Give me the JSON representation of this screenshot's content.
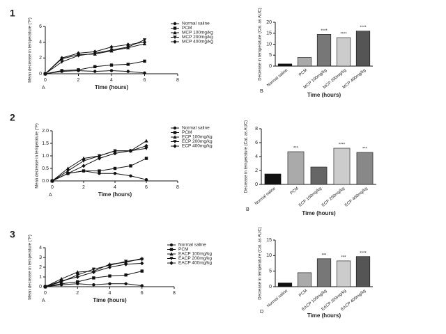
{
  "chart_data": [
    {
      "type": "line",
      "figure_label": "1",
      "panel_label": "A",
      "x_label": "Time (hours)",
      "y_label": "Mean decrease in temperature (°F)",
      "x": [
        0,
        1,
        2,
        3,
        4,
        5,
        6
      ],
      "xlim": [
        0,
        8
      ],
      "xticks": [
        0,
        2,
        4,
        6,
        8
      ],
      "ylim": [
        0,
        6
      ],
      "yticks": [
        0,
        2,
        4,
        6
      ],
      "legend": "upper right",
      "series": [
        {
          "name": "Normal saline",
          "color": "#111111",
          "values": [
            0,
            0.3,
            0.4,
            0.3,
            0.4,
            0.3,
            0.1
          ]
        },
        {
          "name": "PCM",
          "color": "#111111",
          "values": [
            0,
            0.4,
            0.5,
            0.9,
            1.1,
            1.2,
            1.6
          ]
        },
        {
          "name": "MCP 100mg/kg",
          "color": "#111111",
          "values": [
            0,
            1.9,
            2.4,
            2.5,
            2.9,
            3.3,
            3.8
          ]
        },
        {
          "name": "MCP 200mg/kg",
          "color": "#111111",
          "values": [
            0,
            1.5,
            2.3,
            2.6,
            3.0,
            3.4,
            4.3
          ]
        },
        {
          "name": "MCP 400mg/kg",
          "color": "#111111",
          "values": [
            0,
            2.0,
            2.6,
            2.8,
            3.4,
            3.7,
            4.0
          ]
        }
      ]
    },
    {
      "type": "bar",
      "panel_label": "B",
      "x_label": "Time (hours)",
      "y_label": "Decrease in temperature (Cal. as AUC)",
      "categories": [
        "Normal saline",
        "PCM",
        "MCP 100mg/kg",
        "MCP 200mg/kg",
        "MCP 400mg/kg"
      ],
      "values": [
        1,
        4,
        14.5,
        13,
        16
      ],
      "colors": [
        "#111111",
        "#aaaaaa",
        "#777777",
        "#cccccc",
        "#555555"
      ],
      "annotations": [
        null,
        null,
        "****",
        "****",
        "****"
      ],
      "ylim": [
        0,
        20
      ],
      "yticks": [
        0,
        5,
        10,
        15,
        20
      ]
    },
    {
      "type": "line",
      "figure_label": "2",
      "panel_label": "A",
      "x_label": "Time (hours)",
      "y_label": "Mean decrease in temperature (°F)",
      "x": [
        0,
        1,
        2,
        3,
        4,
        5,
        6
      ],
      "xlim": [
        0,
        8
      ],
      "xticks": [
        0,
        2,
        4,
        6,
        8
      ],
      "ylim": [
        0,
        2
      ],
      "yticks": [
        {
          "value": 0,
          "label": "0.0"
        },
        0.5,
        {
          "value": 1,
          "label": "1.0"
        },
        1.5,
        {
          "value": 2,
          "label": "2.0"
        }
      ],
      "legend": "upper right",
      "series": [
        {
          "name": "Normal saline",
          "color": "#111111",
          "values": [
            0,
            0.3,
            0.4,
            0.3,
            0.3,
            0.2,
            0.05
          ]
        },
        {
          "name": "PCM",
          "color": "#111111",
          "values": [
            0,
            0.3,
            0.4,
            0.4,
            0.5,
            0.6,
            0.9
          ]
        },
        {
          "name": "ECP 100mg/kg",
          "color": "#111111",
          "values": [
            0,
            0.5,
            0.9,
            1.0,
            1.2,
            1.2,
            1.6
          ]
        },
        {
          "name": "ECP 200mg/kg",
          "color": "#111111",
          "values": [
            0,
            0.4,
            0.8,
            1.0,
            1.2,
            1.2,
            1.3
          ]
        },
        {
          "name": "ECP 400mg/kg",
          "color": "#111111",
          "values": [
            0,
            0.3,
            0.6,
            0.9,
            1.1,
            1.2,
            1.4
          ]
        }
      ]
    },
    {
      "type": "bar",
      "panel_label": "B",
      "x_label": "Time (hours)",
      "y_label": "Decrease in temperature (Cal. as AUC)",
      "categories": [
        "Normal saline",
        "PCM",
        "ECP 100mg/kg",
        "ECP 200mg/kg",
        "ECP 400mg/kg"
      ],
      "values": [
        1.5,
        4.7,
        2.5,
        5.2,
        4.6
      ],
      "colors": [
        "#111111",
        "#aaaaaa",
        "#666666",
        "#cccccc",
        "#888888"
      ],
      "annotations": [
        null,
        "***",
        null,
        "****",
        "***"
      ],
      "ylim": [
        0,
        8
      ],
      "yticks": [
        0,
        2,
        4,
        6,
        8
      ]
    },
    {
      "type": "line",
      "figure_label": "3",
      "panel_label": "A",
      "x_label": "Time (hours)",
      "y_label": "Mean decrease in temperature (°F)",
      "x": [
        0,
        1,
        2,
        3,
        4,
        5,
        6
      ],
      "xlim": [
        0,
        8
      ],
      "xticks": [
        0,
        2,
        4,
        6,
        8
      ],
      "ylim": [
        0,
        4
      ],
      "yticks": [
        0,
        1,
        2,
        3,
        4
      ],
      "legend": "upper right",
      "series": [
        {
          "name": "Normal saline",
          "color": "#111111",
          "values": [
            0,
            0.2,
            0.3,
            0.2,
            0.3,
            0.3,
            0.1
          ]
        },
        {
          "name": "PCM",
          "color": "#111111",
          "values": [
            0,
            0.3,
            0.5,
            0.9,
            1.1,
            1.2,
            1.6
          ]
        },
        {
          "name": "EACP 100mg/kg",
          "color": "#111111",
          "values": [
            0,
            0.8,
            1.5,
            1.6,
            2.3,
            2.5,
            2.9
          ]
        },
        {
          "name": "EACP 200mg/kg",
          "color": "#111111",
          "values": [
            0,
            0.5,
            1.2,
            1.8,
            2.2,
            2.6,
            2.8
          ]
        },
        {
          "name": "EACP 400mg/kg",
          "color": "#111111",
          "values": [
            0,
            0.6,
            1.0,
            1.5,
            2.0,
            2.3,
            2.4
          ]
        }
      ]
    },
    {
      "type": "bar",
      "panel_label": "D",
      "x_label": "Time (hours)",
      "y_label": "Decrease in temperature (Cal. as AUC)",
      "categories": [
        "Normal saline",
        "PCM",
        "EACP 100mg/kg",
        "EACP 200mg/kg",
        "EACP 400mg/kg"
      ],
      "values": [
        1.2,
        4.5,
        9,
        8.3,
        9.7
      ],
      "colors": [
        "#111111",
        "#aaaaaa",
        "#777777",
        "#cccccc",
        "#555555"
      ],
      "annotations": [
        null,
        null,
        "***",
        "***",
        "****"
      ],
      "ylim": [
        0,
        15
      ],
      "yticks": [
        0,
        5,
        10,
        15
      ]
    }
  ]
}
